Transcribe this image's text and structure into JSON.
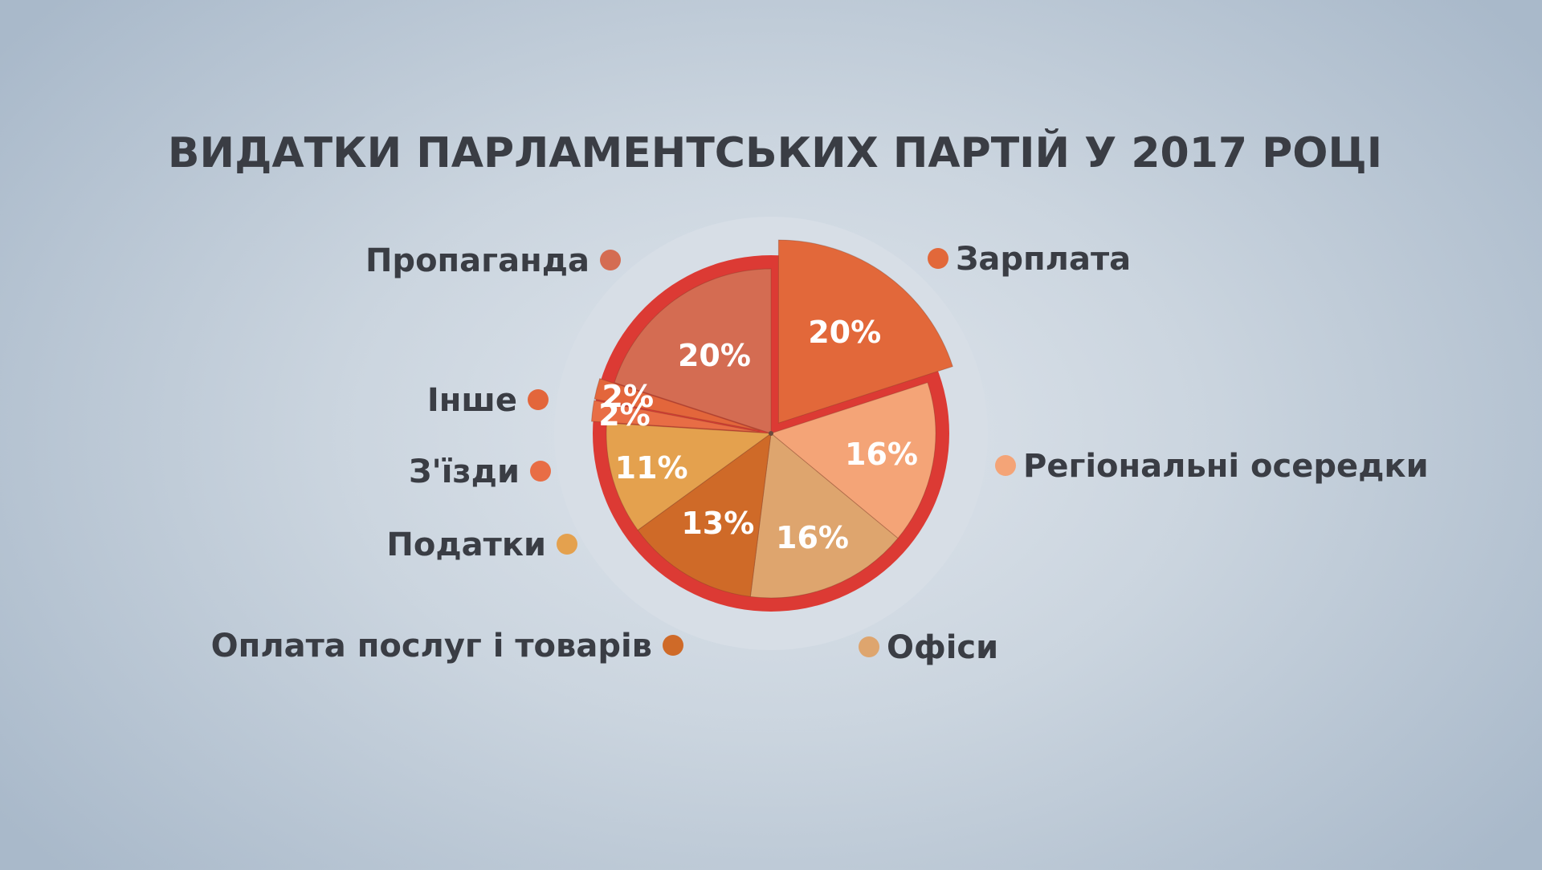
{
  "chart_data": {
    "type": "pie",
    "title": "ВИДАТКИ ПАРЛАМЕНТСЬКИХ ПАРТІЙ У 2017 РОЦІ",
    "slices": [
      {
        "key": "salary",
        "label": "Зарплата",
        "value": 20,
        "value_label": "20%",
        "color": "#e2683a",
        "exploded": true
      },
      {
        "key": "regional",
        "label": "Регіональні осередки",
        "value": 16,
        "value_label": "16%",
        "color": "#f4a477",
        "exploded": false
      },
      {
        "key": "offices",
        "label": "Офіси",
        "value": 16,
        "value_label": "16%",
        "color": "#dea56e",
        "exploded": false
      },
      {
        "key": "services",
        "label": "Оплата послуг і товарів",
        "value": 13,
        "value_label": "13%",
        "color": "#cf6a28",
        "exploded": false
      },
      {
        "key": "taxes",
        "label": "Податки",
        "value": 11,
        "value_label": "11%",
        "color": "#e4a14e",
        "exploded": false
      },
      {
        "key": "congresses",
        "label": "З'їзди",
        "value": 2,
        "value_label": "2%",
        "color": "#e86d45",
        "exploded": true
      },
      {
        "key": "other",
        "label": "Інше",
        "value": 2,
        "value_label": "2%",
        "color": "#e3663b",
        "exploded": true
      },
      {
        "key": "propaganda",
        "label": "Пропаганда",
        "value": 20,
        "value_label": "20%",
        "color": "#d46c52",
        "exploded": false
      }
    ],
    "legend_placement": "around"
  }
}
